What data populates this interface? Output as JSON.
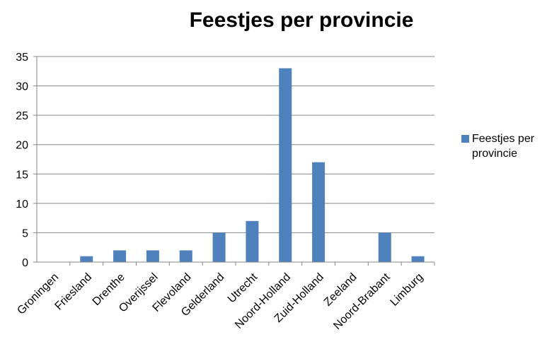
{
  "chart_data": {
    "type": "bar",
    "title": "Feestjes per provincie",
    "categories": [
      "Groningen",
      "Friesland",
      "Drenthe",
      "Overijssel",
      "Flevoland",
      "Gelderland",
      "Utrecht",
      "Noord-Holland",
      "Zuid-Holland",
      "Zeeland",
      "Noord-Brabant",
      "Limburg"
    ],
    "series": [
      {
        "name": "Feestjes per provincie",
        "values": [
          0,
          1,
          2,
          2,
          2,
          5,
          7,
          33,
          17,
          0,
          5,
          1
        ]
      }
    ],
    "ylim": [
      0,
      35
    ],
    "yticks": [
      0,
      5,
      10,
      15,
      20,
      25,
      30,
      35
    ],
    "grid": true,
    "legend_position": "right",
    "colors": {
      "bar": "#4F81BD",
      "grid": "#868686",
      "axis": "#868686"
    }
  }
}
